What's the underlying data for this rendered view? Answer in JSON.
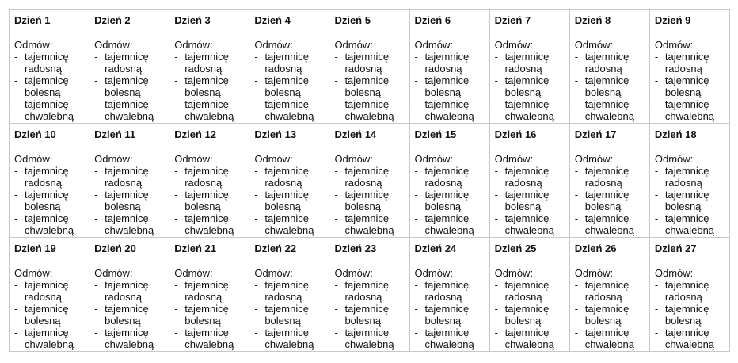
{
  "label": "Odmów:",
  "bullet": "-",
  "items": [
    "tajemnicę radosną",
    "tajemnicę bolesną",
    "tajemnicę chwalebną"
  ],
  "columns_per_row": 9,
  "days": [
    "Dzień 1",
    "Dzień 2",
    "Dzień 3",
    "Dzień 4",
    "Dzień 5",
    "Dzień 6",
    "Dzień 7",
    "Dzień 8",
    "Dzień 9",
    "Dzień 10",
    "Dzień 11",
    "Dzień 12",
    "Dzień 13",
    "Dzień 14",
    "Dzień 15",
    "Dzień 16",
    "Dzień 17",
    "Dzień 18",
    "Dzień 19",
    "Dzień 20",
    "Dzień 21",
    "Dzień 22",
    "Dzień 23",
    "Dzień 24",
    "Dzień 25",
    "Dzień 26",
    "Dzień 27"
  ]
}
